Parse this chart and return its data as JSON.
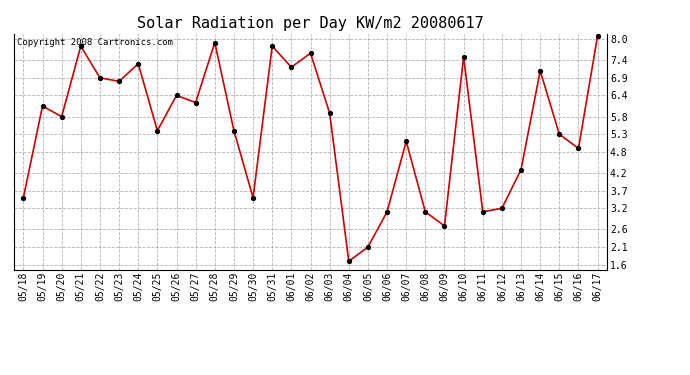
{
  "title": "Solar Radiation per Day KW/m2 20080617",
  "copyright_text": "Copyright 2008 Cartronics.com",
  "dates": [
    "05/18",
    "05/19",
    "05/20",
    "05/21",
    "05/22",
    "05/23",
    "05/24",
    "05/25",
    "05/26",
    "05/27",
    "05/28",
    "05/29",
    "05/30",
    "05/31",
    "06/01",
    "06/02",
    "06/03",
    "06/04",
    "06/05",
    "06/06",
    "06/07",
    "06/08",
    "06/09",
    "06/10",
    "06/11",
    "06/12",
    "06/13",
    "06/14",
    "06/15",
    "06/16",
    "06/17"
  ],
  "values": [
    3.5,
    6.1,
    5.8,
    7.8,
    6.9,
    6.8,
    7.3,
    5.4,
    6.4,
    6.2,
    7.9,
    5.4,
    3.5,
    7.8,
    7.2,
    7.6,
    5.9,
    1.7,
    2.1,
    3.1,
    5.1,
    3.1,
    2.7,
    7.5,
    3.1,
    3.2,
    4.3,
    7.1,
    5.3,
    4.9,
    8.1
  ],
  "line_color": "#cc0000",
  "marker_color": "#000000",
  "marker_size": 3,
  "bg_color": "#ffffff",
  "grid_color": "#aaaaaa",
  "yticks": [
    1.6,
    2.1,
    2.6,
    3.2,
    3.7,
    4.2,
    4.8,
    5.3,
    5.8,
    6.4,
    6.9,
    7.4,
    8.0
  ],
  "ylim": [
    1.45,
    8.15
  ],
  "title_fontsize": 11,
  "tick_fontsize": 7,
  "copyright_fontsize": 6.5
}
